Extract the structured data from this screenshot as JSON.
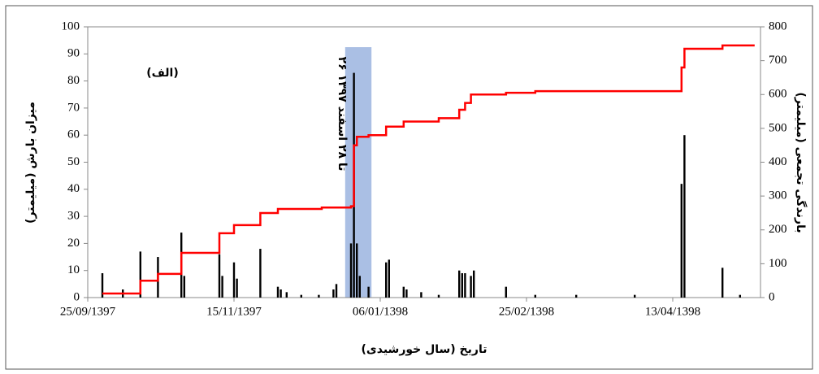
{
  "chart_data": {
    "type": "bar",
    "annotations": [
      "(الف)",
      "۲۶ تا ۲۸ اسفند ۱۳۹۷"
    ],
    "xlabel": "تاریخ (سال خورشیدی)",
    "ylabel": "میزان بارش (میلیمتر)",
    "y2label": "بارندگی تجمعی (میلیمتر)",
    "xlim": [
      0,
      230
    ],
    "xticks": [
      {
        "value": 0,
        "label": "25/09/1397"
      },
      {
        "value": 50,
        "label": "15/11/1397"
      },
      {
        "value": 100,
        "label": "06/01/1398"
      },
      {
        "value": 150,
        "label": "25/02/1398"
      },
      {
        "value": 200,
        "label": "13/04/1398"
      }
    ],
    "ylim": [
      0,
      100
    ],
    "yticks": [
      0,
      10,
      20,
      30,
      40,
      50,
      60,
      70,
      80,
      90,
      100
    ],
    "y2lim": [
      0,
      800
    ],
    "y2ticks": [
      0,
      100,
      200,
      300,
      400,
      500,
      600,
      700,
      800
    ],
    "highlight": {
      "x": [
        88,
        97
      ],
      "color": "#8eaadb"
    },
    "series": [
      {
        "type": "bar",
        "color": "#000000",
        "x": [
          5,
          12,
          18,
          24,
          32,
          33,
          45,
          46,
          50,
          51,
          59,
          65,
          66,
          68,
          73,
          79,
          84,
          85,
          90,
          91,
          92,
          93,
          96,
          102,
          103,
          108,
          109,
          114,
          120,
          127,
          128,
          129,
          131,
          132,
          143,
          153,
          167,
          187,
          203,
          204,
          217,
          223
        ],
        "values": [
          9,
          3,
          17,
          15,
          24,
          8,
          16,
          8,
          13,
          7,
          18,
          4,
          3,
          2,
          1,
          1,
          3,
          5,
          20,
          83,
          20,
          8,
          4,
          13,
          14,
          4,
          3,
          2,
          1,
          10,
          9,
          9,
          8,
          10,
          4,
          1,
          1,
          1,
          42,
          60,
          11,
          1
        ]
      },
      {
        "type": "line",
        "axis": "y2",
        "step": true,
        "color": "#ff0000",
        "x": [
          5,
          18,
          24,
          32,
          45,
          50,
          59,
          65,
          80,
          90,
          91,
          92,
          96,
          102,
          108,
          120,
          127,
          129,
          131,
          143,
          153,
          203,
          204,
          217,
          228
        ],
        "values": [
          12,
          50,
          70,
          132,
          190,
          214,
          250,
          262,
          266,
          270,
          450,
          475,
          480,
          505,
          520,
          530,
          555,
          575,
          600,
          605,
          610,
          680,
          735,
          745,
          745
        ]
      }
    ]
  }
}
